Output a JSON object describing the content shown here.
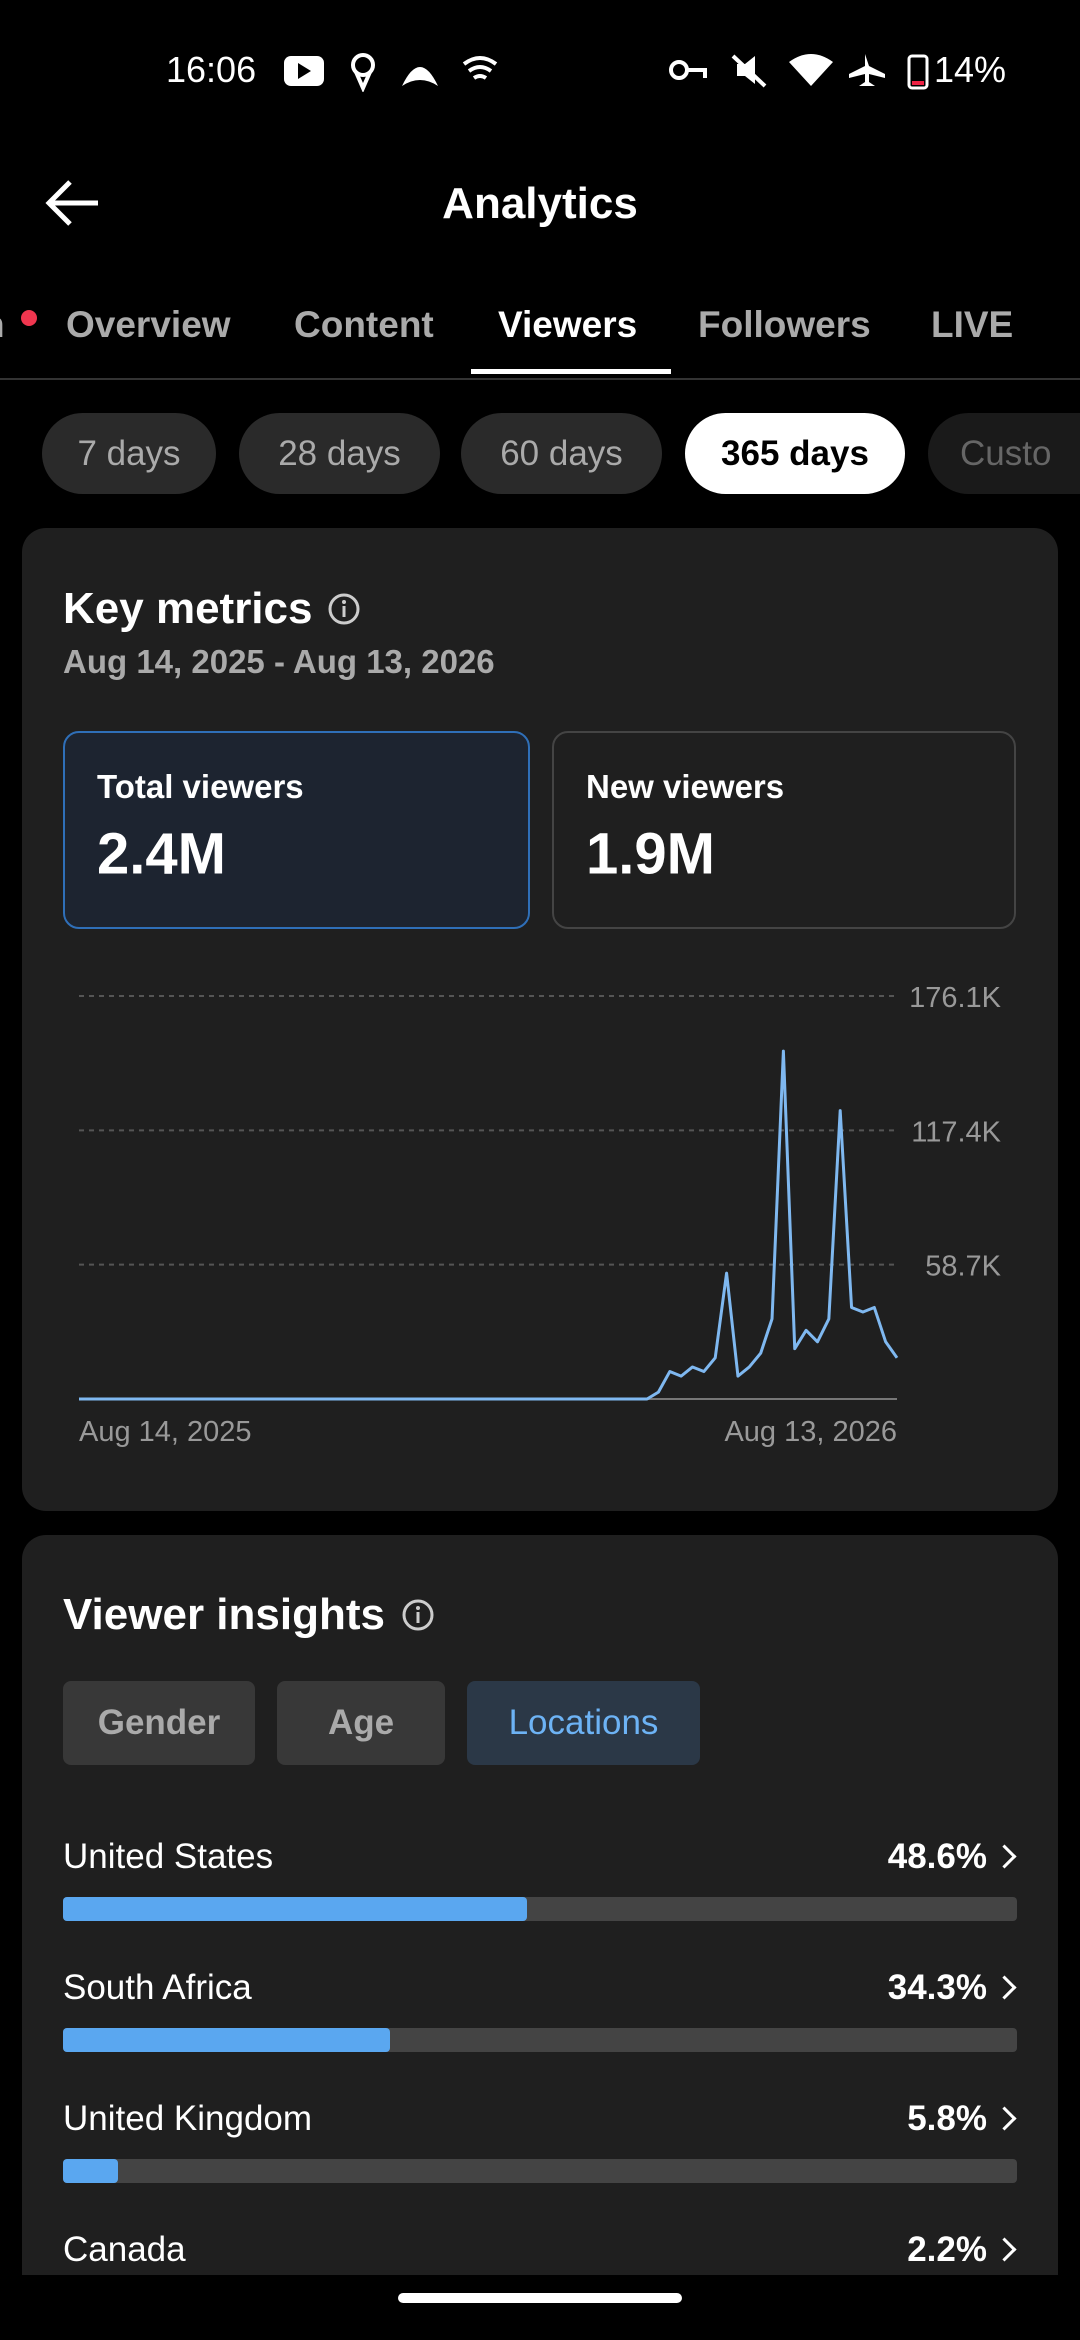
{
  "status_bar": {
    "time": "16:06",
    "battery": "14%"
  },
  "header": {
    "title": "Analytics"
  },
  "tabs": [
    "n",
    "Overview",
    "Content",
    "Viewers",
    "Followers",
    "LIVE"
  ],
  "ranges": [
    "7 days",
    "28 days",
    "60 days",
    "365 days",
    "Custo"
  ],
  "key_metrics": {
    "title": "Key metrics",
    "date_range": "Aug 14, 2025 - Aug 13, 2026",
    "cards": [
      {
        "label": "Total viewers",
        "value": "2.4M"
      },
      {
        "label": "New viewers",
        "value": "1.9M"
      }
    ]
  },
  "chart_data": {
    "type": "line",
    "color": "#7fb8f0",
    "grid": true,
    "categories": [
      "Aug 14, 2025",
      null,
      null,
      null,
      null,
      null,
      null,
      null,
      null,
      null,
      null,
      null,
      null,
      null,
      null,
      null,
      null,
      null,
      null,
      null,
      null,
      null,
      null,
      null,
      null,
      null,
      null,
      null,
      null,
      null,
      null,
      null,
      null,
      null,
      null,
      null,
      null,
      null,
      null,
      null,
      null,
      null,
      null,
      null,
      null,
      null,
      null,
      null,
      null,
      null,
      null,
      null,
      null,
      null,
      null,
      null,
      null,
      null,
      null,
      null,
      null,
      null,
      null,
      null,
      null,
      null,
      null,
      null,
      null,
      null,
      null,
      null,
      "Aug 13, 2026"
    ],
    "values": [
      0,
      0,
      0,
      0,
      0,
      0,
      0,
      0,
      0,
      0,
      0,
      0,
      0,
      0,
      0,
      0,
      0,
      0,
      0,
      0,
      0,
      0,
      0,
      0,
      0,
      0,
      0,
      0,
      0,
      0,
      0,
      0,
      0,
      0,
      0,
      0,
      0,
      0,
      0,
      0,
      0,
      0,
      0,
      0,
      0,
      0,
      0,
      0,
      0,
      0,
      0,
      3000,
      12000,
      10000,
      14000,
      12000,
      18000,
      55000,
      10000,
      14000,
      20000,
      35000,
      152000,
      22000,
      30000,
      25000,
      35000,
      126000,
      40000,
      38000,
      40000,
      25000,
      18000
    ],
    "ylim": [
      0,
      176100
    ],
    "yticks": [
      {
        "value": 58700,
        "label": "58.7K"
      },
      {
        "value": 117400,
        "label": "117.4K"
      },
      {
        "value": 176100,
        "label": "176.1K"
      }
    ]
  },
  "viewer_insights": {
    "title": "Viewer insights",
    "filters": [
      "Gender",
      "Age",
      "Locations"
    ],
    "locations": {
      "xlim": [
        0,
        100
      ],
      "names": [
        "United States",
        "South Africa",
        "United Kingdom",
        "Canada"
      ],
      "values": [
        48.6,
        34.3,
        5.8,
        2.2
      ],
      "value_labels": [
        "48.6%",
        "34.3%",
        "5.8%",
        "2.2%"
      ]
    }
  }
}
